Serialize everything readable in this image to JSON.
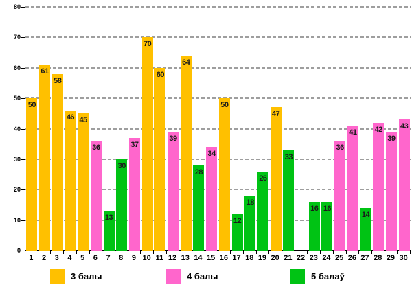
{
  "chart_data": {
    "type": "bar",
    "title": "",
    "xlabel": "",
    "ylabel": "",
    "ylim": [
      0,
      80
    ],
    "yticks": [
      0,
      10,
      20,
      30,
      40,
      50,
      60,
      70,
      80
    ],
    "grid": true,
    "legend_position": "bottom",
    "series": [
      {
        "name": "3 балы",
        "color": "#FFC000"
      },
      {
        "name": "4 балы",
        "color": "#FF66CC"
      },
      {
        "name": "5 балаў",
        "color": "#00C314"
      }
    ],
    "bars": [
      {
        "category": "1",
        "value": 50,
        "series": "3 балы"
      },
      {
        "category": "2",
        "value": 61,
        "series": "3 балы"
      },
      {
        "category": "3",
        "value": 58,
        "series": "3 балы"
      },
      {
        "category": "4",
        "value": 46,
        "series": "3 балы"
      },
      {
        "category": "5",
        "value": 45,
        "series": "3 балы"
      },
      {
        "category": "6",
        "value": 36,
        "series": "4 балы"
      },
      {
        "category": "7",
        "value": 13,
        "series": "5 балаў"
      },
      {
        "category": "8",
        "value": 30,
        "series": "5 балаў"
      },
      {
        "category": "9",
        "value": 37,
        "series": "4 балы"
      },
      {
        "category": "10",
        "value": 70,
        "series": "3 балы"
      },
      {
        "category": "11",
        "value": 60,
        "series": "3 балы"
      },
      {
        "category": "12",
        "value": 39,
        "series": "4 балы"
      },
      {
        "category": "13",
        "value": 64,
        "series": "3 балы"
      },
      {
        "category": "14",
        "value": 28,
        "series": "5 балаў"
      },
      {
        "category": "15",
        "value": 34,
        "series": "4 балы"
      },
      {
        "category": "16",
        "value": 50,
        "series": "3 балы"
      },
      {
        "category": "17",
        "value": 12,
        "series": "5 балаў"
      },
      {
        "category": "18",
        "value": 18,
        "series": "5 балаў"
      },
      {
        "category": "19",
        "value": 26,
        "series": "5 балаў"
      },
      {
        "category": "20",
        "value": 47,
        "series": "3 балы"
      },
      {
        "category": "21",
        "value": 33,
        "series": "5 балаў"
      },
      {
        "category": "22",
        "value": null,
        "series": null
      },
      {
        "category": "23",
        "value": 16,
        "series": "5 балаў"
      },
      {
        "category": "24",
        "value": 16,
        "series": "5 балаў"
      },
      {
        "category": "25",
        "value": 36,
        "series": "4 балы"
      },
      {
        "category": "26",
        "value": 41,
        "series": "4 балы"
      },
      {
        "category": "27",
        "value": 14,
        "series": "5 балаў"
      },
      {
        "category": "28",
        "value": 42,
        "series": "4 балы"
      },
      {
        "category": "29",
        "value": 39,
        "series": "4 балы"
      },
      {
        "category": "30",
        "value": 43,
        "series": "4 балы"
      }
    ]
  }
}
